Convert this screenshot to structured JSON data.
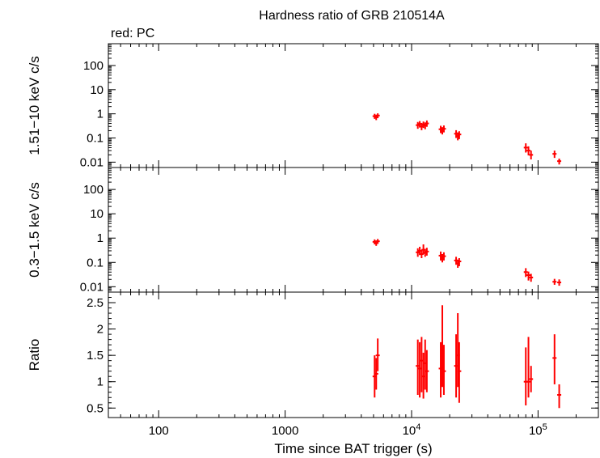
{
  "chart_data": {
    "type": "scatter",
    "title": "Hardness ratio of GRB 210514A",
    "subtitle": "red: PC",
    "xlabel": "Time since BAT trigger (s)",
    "xscale": "log",
    "xlim": [
      40,
      300000
    ],
    "x_ticks": [
      {
        "value": 100,
        "label": "100"
      },
      {
        "value": 1000,
        "label": "1000"
      },
      {
        "value": 10000,
        "base": "10",
        "exp": "4"
      },
      {
        "value": 100000,
        "base": "10",
        "exp": "5"
      }
    ],
    "series_color": "#ff0000",
    "panels": [
      {
        "name": "hard",
        "ylabel": "1.51−10 keV c/s",
        "yscale": "log",
        "ylim": [
          0.006,
          800
        ],
        "y_ticks": [
          {
            "value": 0.01,
            "label": "0.01"
          },
          {
            "value": 0.1,
            "label": "0.1"
          },
          {
            "value": 1,
            "label": "1"
          },
          {
            "value": 10,
            "label": "10"
          },
          {
            "value": 100,
            "label": "100"
          }
        ],
        "points": [
          {
            "x": 5100,
            "y": 0.8,
            "ylo": 0.62,
            "yhi": 1.0
          },
          {
            "x": 5250,
            "y": 0.72,
            "ylo": 0.55,
            "yhi": 0.92
          },
          {
            "x": 5400,
            "y": 0.85,
            "ylo": 0.66,
            "yhi": 1.05
          },
          {
            "x": 11200,
            "y": 0.34,
            "ylo": 0.24,
            "yhi": 0.46
          },
          {
            "x": 11600,
            "y": 0.38,
            "ylo": 0.27,
            "yhi": 0.5
          },
          {
            "x": 12000,
            "y": 0.3,
            "ylo": 0.21,
            "yhi": 0.42
          },
          {
            "x": 12400,
            "y": 0.36,
            "ylo": 0.26,
            "yhi": 0.48
          },
          {
            "x": 12800,
            "y": 0.33,
            "ylo": 0.23,
            "yhi": 0.44
          },
          {
            "x": 13200,
            "y": 0.4,
            "ylo": 0.29,
            "yhi": 0.53
          },
          {
            "x": 17000,
            "y": 0.23,
            "ylo": 0.16,
            "yhi": 0.32
          },
          {
            "x": 17500,
            "y": 0.2,
            "ylo": 0.14,
            "yhi": 0.28
          },
          {
            "x": 18000,
            "y": 0.24,
            "ylo": 0.17,
            "yhi": 0.33
          },
          {
            "x": 22500,
            "y": 0.15,
            "ylo": 0.1,
            "yhi": 0.21
          },
          {
            "x": 23200,
            "y": 0.12,
            "ylo": 0.08,
            "yhi": 0.17
          },
          {
            "x": 23800,
            "y": 0.14,
            "ylo": 0.09,
            "yhi": 0.19
          },
          {
            "x": 80000,
            "y": 0.04,
            "ylo": 0.025,
            "yhi": 0.06
          },
          {
            "x": 84000,
            "y": 0.03,
            "ylo": 0.019,
            "yhi": 0.045
          },
          {
            "x": 88000,
            "y": 0.02,
            "ylo": 0.013,
            "yhi": 0.03
          },
          {
            "x": 135000,
            "y": 0.022,
            "ylo": 0.015,
            "yhi": 0.03
          },
          {
            "x": 147000,
            "y": 0.011,
            "ylo": 0.008,
            "yhi": 0.014
          }
        ]
      },
      {
        "name": "soft",
        "ylabel": "0.3−1.5 keV c/s",
        "yscale": "log",
        "ylim": [
          0.006,
          800
        ],
        "y_ticks": [
          {
            "value": 0.01,
            "label": "0.01"
          },
          {
            "value": 0.1,
            "label": "0.1"
          },
          {
            "value": 1,
            "label": "1"
          },
          {
            "value": 10,
            "label": "10"
          },
          {
            "value": 100,
            "label": "100"
          }
        ],
        "points": [
          {
            "x": 5100,
            "y": 0.7,
            "ylo": 0.55,
            "yhi": 0.88
          },
          {
            "x": 5250,
            "y": 0.62,
            "ylo": 0.48,
            "yhi": 0.8
          },
          {
            "x": 5400,
            "y": 0.74,
            "ylo": 0.58,
            "yhi": 0.92
          },
          {
            "x": 11200,
            "y": 0.26,
            "ylo": 0.17,
            "yhi": 0.38
          },
          {
            "x": 11600,
            "y": 0.3,
            "ylo": 0.2,
            "yhi": 0.44
          },
          {
            "x": 12000,
            "y": 0.22,
            "ylo": 0.15,
            "yhi": 0.33
          },
          {
            "x": 12400,
            "y": 0.33,
            "ylo": 0.22,
            "yhi": 0.55
          },
          {
            "x": 12800,
            "y": 0.25,
            "ylo": 0.17,
            "yhi": 0.36
          },
          {
            "x": 13200,
            "y": 0.28,
            "ylo": 0.19,
            "yhi": 0.4
          },
          {
            "x": 17000,
            "y": 0.19,
            "ylo": 0.12,
            "yhi": 0.28
          },
          {
            "x": 17500,
            "y": 0.15,
            "ylo": 0.1,
            "yhi": 0.22
          },
          {
            "x": 18000,
            "y": 0.18,
            "ylo": 0.12,
            "yhi": 0.26
          },
          {
            "x": 22500,
            "y": 0.12,
            "ylo": 0.08,
            "yhi": 0.17
          },
          {
            "x": 23200,
            "y": 0.09,
            "ylo": 0.06,
            "yhi": 0.13
          },
          {
            "x": 23800,
            "y": 0.11,
            "ylo": 0.07,
            "yhi": 0.15
          },
          {
            "x": 80000,
            "y": 0.04,
            "ylo": 0.025,
            "yhi": 0.058
          },
          {
            "x": 84000,
            "y": 0.03,
            "ylo": 0.018,
            "yhi": 0.042
          },
          {
            "x": 88000,
            "y": 0.024,
            "ylo": 0.016,
            "yhi": 0.034
          },
          {
            "x": 135000,
            "y": 0.016,
            "ylo": 0.012,
            "yhi": 0.021
          },
          {
            "x": 147000,
            "y": 0.015,
            "ylo": 0.011,
            "yhi": 0.02
          }
        ]
      },
      {
        "name": "ratio",
        "ylabel": "Ratio",
        "yscale": "linear",
        "ylim": [
          0.32,
          2.7
        ],
        "y_ticks": [
          {
            "value": 0.5,
            "label": "0.5"
          },
          {
            "value": 1,
            "label": "1"
          },
          {
            "value": 1.5,
            "label": "1.5"
          },
          {
            "value": 2,
            "label": "2"
          },
          {
            "value": 2.5,
            "label": "2.5"
          }
        ],
        "points": [
          {
            "x": 5100,
            "y": 1.1,
            "ylo": 0.7,
            "yhi": 1.5
          },
          {
            "x": 5250,
            "y": 1.15,
            "ylo": 0.85,
            "yhi": 1.45
          },
          {
            "x": 5400,
            "y": 1.5,
            "ylo": 1.2,
            "yhi": 1.82
          },
          {
            "x": 11200,
            "y": 1.3,
            "ylo": 0.75,
            "yhi": 1.8
          },
          {
            "x": 11600,
            "y": 1.25,
            "ylo": 0.7,
            "yhi": 1.75
          },
          {
            "x": 12000,
            "y": 1.4,
            "ylo": 0.8,
            "yhi": 1.85
          },
          {
            "x": 12400,
            "y": 1.1,
            "ylo": 0.68,
            "yhi": 1.55
          },
          {
            "x": 12800,
            "y": 1.35,
            "ylo": 0.85,
            "yhi": 1.8
          },
          {
            "x": 13200,
            "y": 1.2,
            "ylo": 0.8,
            "yhi": 1.6
          },
          {
            "x": 17000,
            "y": 1.25,
            "ylo": 0.7,
            "yhi": 1.75
          },
          {
            "x": 17500,
            "y": 1.6,
            "ylo": 0.9,
            "yhi": 2.45
          },
          {
            "x": 18000,
            "y": 1.2,
            "ylo": 0.75,
            "yhi": 1.7
          },
          {
            "x": 22500,
            "y": 1.3,
            "ylo": 0.7,
            "yhi": 1.9
          },
          {
            "x": 23200,
            "y": 1.5,
            "ylo": 0.9,
            "yhi": 2.3
          },
          {
            "x": 23800,
            "y": 1.2,
            "ylo": 0.6,
            "yhi": 1.75
          },
          {
            "x": 80000,
            "y": 1.0,
            "ylo": 0.55,
            "yhi": 1.65
          },
          {
            "x": 84000,
            "y": 1.0,
            "ylo": 0.7,
            "yhi": 1.85
          },
          {
            "x": 88000,
            "y": 1.05,
            "ylo": 0.8,
            "yhi": 1.3
          },
          {
            "x": 135000,
            "y": 1.45,
            "ylo": 0.95,
            "yhi": 1.9
          },
          {
            "x": 147000,
            "y": 0.75,
            "ylo": 0.5,
            "yhi": 0.95
          }
        ]
      }
    ]
  }
}
